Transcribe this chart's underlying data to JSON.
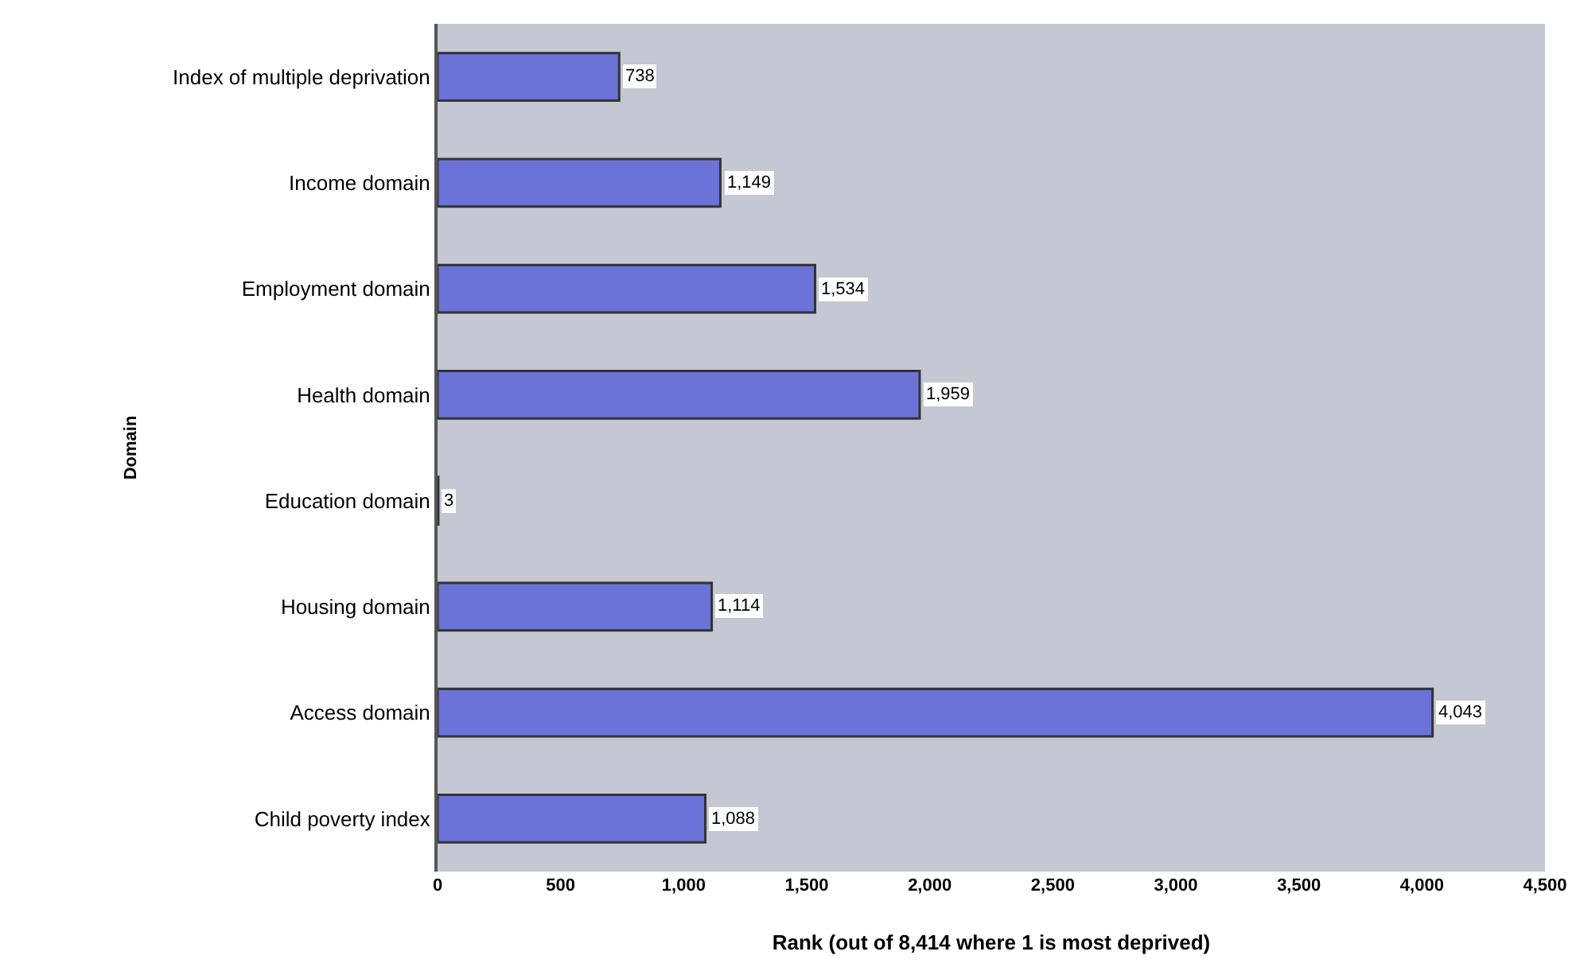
{
  "chart_data": {
    "type": "bar",
    "orientation": "horizontal",
    "xlabel": "Rank (out of 8,414 where 1 is most deprived)",
    "ylabel": "Domain",
    "categories": [
      "Index of multiple deprivation",
      "Income domain",
      "Employment domain",
      "Health domain",
      "Education domain",
      "Housing domain",
      "Access domain",
      "Child poverty index"
    ],
    "values": [
      738,
      1149,
      1534,
      1959,
      3,
      1114,
      4043,
      1088
    ],
    "value_labels": [
      "738",
      "1,149",
      "1,534",
      "1,959",
      "3",
      "1,114",
      "4,043",
      "1,088"
    ],
    "color": "#6b72d8",
    "xlim": [
      0,
      4500
    ],
    "xticks": [
      {
        "value": 0,
        "label": "0"
      },
      {
        "value": 500,
        "label": "500"
      },
      {
        "value": 1000,
        "label": "1,000"
      },
      {
        "value": 1500,
        "label": "1,500"
      },
      {
        "value": 2000,
        "label": "2,000"
      },
      {
        "value": 2500,
        "label": "2,500"
      },
      {
        "value": 3000,
        "label": "3,000"
      },
      {
        "value": 3500,
        "label": "3,500"
      },
      {
        "value": 4000,
        "label": "4,000"
      },
      {
        "value": 4500,
        "label": "4,500"
      }
    ],
    "grid": false,
    "legend": false
  }
}
